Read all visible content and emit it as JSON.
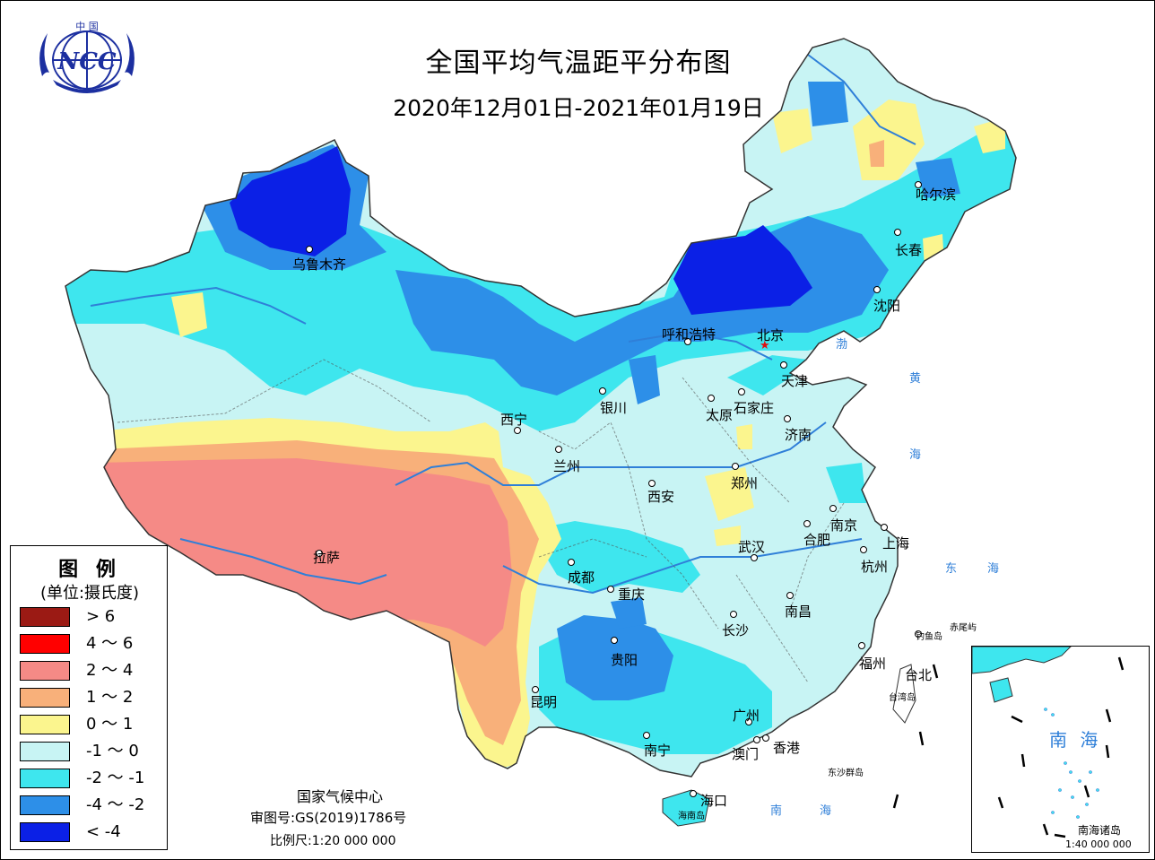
{
  "title": "全国平均气温距平分布图",
  "subtitle": "2020年12月01日-2021年01月19日",
  "logo": {
    "top_text": "中 国",
    "text": "NCC"
  },
  "cities": [
    {
      "key": "urumqi",
      "name": "乌鲁木齐"
    },
    {
      "key": "lhasa",
      "name": "拉萨"
    },
    {
      "key": "xining",
      "name": "西宁"
    },
    {
      "key": "lanzhou",
      "name": "兰州"
    },
    {
      "key": "yinchuan",
      "name": "银川"
    },
    {
      "key": "hohhot",
      "name": "呼和浩特"
    },
    {
      "key": "beijing",
      "name": "北京"
    },
    {
      "key": "tianjin",
      "name": "天津"
    },
    {
      "key": "shijiazhuang",
      "name": "石家庄"
    },
    {
      "key": "taiyuan",
      "name": "太原"
    },
    {
      "key": "jinan",
      "name": "济南"
    },
    {
      "key": "zhengzhou",
      "name": "郑州"
    },
    {
      "key": "xian",
      "name": "西安"
    },
    {
      "key": "chengdu",
      "name": "成都"
    },
    {
      "key": "chongqing",
      "name": "重庆"
    },
    {
      "key": "guiyang",
      "name": "贵阳"
    },
    {
      "key": "kunming",
      "name": "昆明"
    },
    {
      "key": "nanning",
      "name": "南宁"
    },
    {
      "key": "guangzhou",
      "name": "广州"
    },
    {
      "key": "hongkong",
      "name": "香港"
    },
    {
      "key": "macau",
      "name": "澳门"
    },
    {
      "key": "haikou",
      "name": "海口"
    },
    {
      "key": "changsha",
      "name": "长沙"
    },
    {
      "key": "nanchang",
      "name": "南昌"
    },
    {
      "key": "wuhan",
      "name": "武汉"
    },
    {
      "key": "hefei",
      "name": "合肥"
    },
    {
      "key": "nanjing",
      "name": "南京"
    },
    {
      "key": "shanghai",
      "name": "上海"
    },
    {
      "key": "hangzhou",
      "name": "杭州"
    },
    {
      "key": "fuzhou",
      "name": "福州"
    },
    {
      "key": "taipei",
      "name": "台北"
    },
    {
      "key": "shenyang",
      "name": "沈阳"
    },
    {
      "key": "changchun",
      "name": "长春"
    },
    {
      "key": "harbin",
      "name": "哈尔滨"
    }
  ],
  "sea_labels": [
    "渤",
    "黄",
    "海",
    "东",
    "海",
    "南",
    "海"
  ],
  "island_labels": {
    "diaoyu": "钓鱼岛",
    "chiwei": "赤尾屿",
    "taiwan": "台湾岛",
    "dongsha": "东沙群岛",
    "hainan": "海南岛"
  },
  "legend": {
    "title": "图 例",
    "unit": "(单位:摄氏度)",
    "items": [
      {
        "label": "> 6",
        "color": "#9b1a14"
      },
      {
        "label": "4 ～ 6",
        "color": "#ff0000"
      },
      {
        "label": "2 ～ 4",
        "color": "#f58a86"
      },
      {
        "label": "1 ～ 2",
        "color": "#f8b07a"
      },
      {
        "label": "0 ～ 1",
        "color": "#fbf58e"
      },
      {
        "label": "-1 ～ 0",
        "color": "#c8f4f4"
      },
      {
        "label": "-2 ～ -1",
        "color": "#3ee6ee"
      },
      {
        "label": "-4 ～ -2",
        "color": "#2d8fe8"
      },
      {
        "label": "< -4",
        "color": "#0b20e6"
      }
    ]
  },
  "footer": {
    "org": "国家气候中心",
    "review": "审图号:GS(2019)1786号",
    "scale": "比例尺:1:20 000 000"
  },
  "inset": {
    "label": "南 海",
    "islands": "南海诸岛",
    "scale": "1:40 000 000"
  }
}
